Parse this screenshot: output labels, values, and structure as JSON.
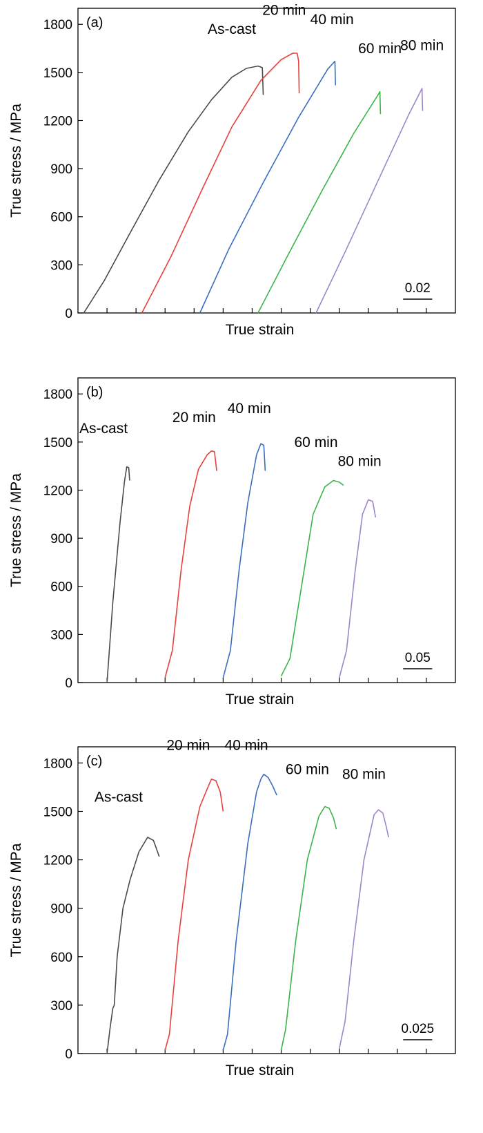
{
  "figure": {
    "xlabel_common": "True strain",
    "ylabel_common": "True stress / MPa"
  },
  "chart_data": [
    {
      "panel": "(a)",
      "type": "line",
      "xlabel": "True strain",
      "ylabel": "True stress / MPa",
      "ylim": [
        0,
        1900
      ],
      "yticks": [
        "0",
        "300",
        "600",
        "900",
        "1200",
        "1500",
        "1800"
      ],
      "x_minor_ticks": 13,
      "scale_bar": "0.02",
      "series": [
        {
          "name": "As-cast",
          "color": "#4a4a4a",
          "points": [
            [
              0.2,
              0
            ],
            [
              0.9,
              200
            ],
            [
              1.8,
              500
            ],
            [
              2.8,
              830
            ],
            [
              3.8,
              1130
            ],
            [
              4.6,
              1330
            ],
            [
              5.3,
              1470
            ],
            [
              5.8,
              1525
            ],
            [
              6.2,
              1540
            ],
            [
              6.35,
              1530
            ],
            [
              6.38,
              1360
            ]
          ]
        },
        {
          "name": "20 min",
          "color": "#e8403a",
          "points": [
            [
              2.2,
              0
            ],
            [
              3.2,
              350
            ],
            [
              4.3,
              780
            ],
            [
              5.3,
              1160
            ],
            [
              6.3,
              1450
            ],
            [
              7.0,
              1580
            ],
            [
              7.4,
              1620
            ],
            [
              7.55,
              1620
            ],
            [
              7.6,
              1570
            ],
            [
              7.62,
              1370
            ]
          ]
        },
        {
          "name": "40 min",
          "color": "#3a6fc0",
          "points": [
            [
              4.2,
              0
            ],
            [
              5.2,
              400
            ],
            [
              6.4,
              820
            ],
            [
              7.6,
              1220
            ],
            [
              8.6,
              1520
            ],
            [
              8.85,
              1570
            ],
            [
              8.87,
              1420
            ]
          ]
        },
        {
          "name": "60 min",
          "color": "#3cb44a",
          "points": [
            [
              6.2,
              0
            ],
            [
              7.2,
              350
            ],
            [
              8.4,
              760
            ],
            [
              9.5,
              1120
            ],
            [
              10.3,
              1350
            ],
            [
              10.4,
              1380
            ],
            [
              10.42,
              1240
            ]
          ]
        },
        {
          "name": "80 min",
          "color": "#9d86c9",
          "points": [
            [
              8.2,
              0
            ],
            [
              9.2,
              380
            ],
            [
              10.4,
              850
            ],
            [
              11.4,
              1240
            ],
            [
              11.85,
              1400
            ],
            [
              11.87,
              1260
            ]
          ]
        }
      ]
    },
    {
      "panel": "(b)",
      "type": "line",
      "xlabel": "True strain",
      "ylabel": "True stress / MPa",
      "ylim": [
        0,
        1900
      ],
      "yticks": [
        "0",
        "300",
        "600",
        "900",
        "1200",
        "1500",
        "1800"
      ],
      "x_minor_ticks": 13,
      "scale_bar": "0.05",
      "series": [
        {
          "name": "As-cast",
          "color": "#4a4a4a",
          "points": [
            [
              1.0,
              0
            ],
            [
              1.2,
              500
            ],
            [
              1.45,
              1000
            ],
            [
              1.6,
              1250
            ],
            [
              1.68,
              1345
            ],
            [
              1.75,
              1340
            ],
            [
              1.78,
              1260
            ]
          ]
        },
        {
          "name": "20 min",
          "color": "#e8403a",
          "points": [
            [
              3.0,
              30
            ],
            [
              3.25,
              200
            ],
            [
              3.55,
              700
            ],
            [
              3.85,
              1100
            ],
            [
              4.15,
              1330
            ],
            [
              4.45,
              1420
            ],
            [
              4.6,
              1445
            ],
            [
              4.7,
              1440
            ],
            [
              4.78,
              1320
            ]
          ]
        },
        {
          "name": "40 min",
          "color": "#3a6fc0",
          "points": [
            [
              5.0,
              30
            ],
            [
              5.25,
              200
            ],
            [
              5.55,
              700
            ],
            [
              5.85,
              1120
            ],
            [
              6.15,
              1420
            ],
            [
              6.3,
              1490
            ],
            [
              6.4,
              1480
            ],
            [
              6.45,
              1320
            ]
          ]
        },
        {
          "name": "60 min",
          "color": "#3cb44a",
          "points": [
            [
              7.0,
              40
            ],
            [
              7.3,
              150
            ],
            [
              7.7,
              600
            ],
            [
              8.1,
              1050
            ],
            [
              8.5,
              1220
            ],
            [
              8.8,
              1260
            ],
            [
              9.0,
              1250
            ],
            [
              9.15,
              1230
            ]
          ]
        },
        {
          "name": "80 min",
          "color": "#9d86c9",
          "points": [
            [
              9.0,
              30
            ],
            [
              9.25,
              200
            ],
            [
              9.55,
              700
            ],
            [
              9.8,
              1050
            ],
            [
              10.0,
              1140
            ],
            [
              10.15,
              1130
            ],
            [
              10.25,
              1030
            ]
          ]
        }
      ]
    },
    {
      "panel": "(c)",
      "type": "line",
      "xlabel": "True strain",
      "ylabel": "True stress / MPa",
      "ylim": [
        0,
        1900
      ],
      "yticks": [
        "0",
        "300",
        "600",
        "900",
        "1200",
        "1500",
        "1800"
      ],
      "x_minor_ticks": 13,
      "scale_bar": "0.025",
      "series": [
        {
          "name": "As-cast",
          "color": "#4a4a4a",
          "points": [
            [
              1.0,
              0
            ],
            [
              1.1,
              150
            ],
            [
              1.2,
              280
            ],
            [
              1.25,
              300
            ],
            [
              1.35,
              600
            ],
            [
              1.55,
              900
            ],
            [
              1.8,
              1080
            ],
            [
              2.1,
              1250
            ],
            [
              2.4,
              1340
            ],
            [
              2.6,
              1320
            ],
            [
              2.8,
              1220
            ]
          ]
        },
        {
          "name": "20 min",
          "color": "#e8403a",
          "points": [
            [
              3.0,
              20
            ],
            [
              3.15,
              120
            ],
            [
              3.45,
              700
            ],
            [
              3.8,
              1200
            ],
            [
              4.2,
              1530
            ],
            [
              4.5,
              1660
            ],
            [
              4.6,
              1700
            ],
            [
              4.75,
              1690
            ],
            [
              4.9,
              1620
            ],
            [
              5.0,
              1500
            ]
          ]
        },
        {
          "name": "40 min",
          "color": "#3a6fc0",
          "points": [
            [
              5.0,
              20
            ],
            [
              5.15,
              120
            ],
            [
              5.45,
              700
            ],
            [
              5.85,
              1300
            ],
            [
              6.15,
              1620
            ],
            [
              6.3,
              1700
            ],
            [
              6.4,
              1730
            ],
            [
              6.55,
              1710
            ],
            [
              6.7,
              1660
            ],
            [
              6.85,
              1600
            ]
          ]
        },
        {
          "name": "60 min",
          "color": "#3cb44a",
          "points": [
            [
              7.0,
              20
            ],
            [
              7.15,
              150
            ],
            [
              7.5,
              700
            ],
            [
              7.9,
              1200
            ],
            [
              8.3,
              1470
            ],
            [
              8.5,
              1530
            ],
            [
              8.65,
              1520
            ],
            [
              8.8,
              1460
            ],
            [
              8.9,
              1390
            ]
          ]
        },
        {
          "name": "80 min",
          "color": "#9d86c9",
          "points": [
            [
              9.0,
              30
            ],
            [
              9.2,
              200
            ],
            [
              9.5,
              700
            ],
            [
              9.85,
              1200
            ],
            [
              10.2,
              1480
            ],
            [
              10.35,
              1510
            ],
            [
              10.5,
              1490
            ],
            [
              10.6,
              1420
            ],
            [
              10.7,
              1340
            ]
          ]
        }
      ]
    }
  ]
}
